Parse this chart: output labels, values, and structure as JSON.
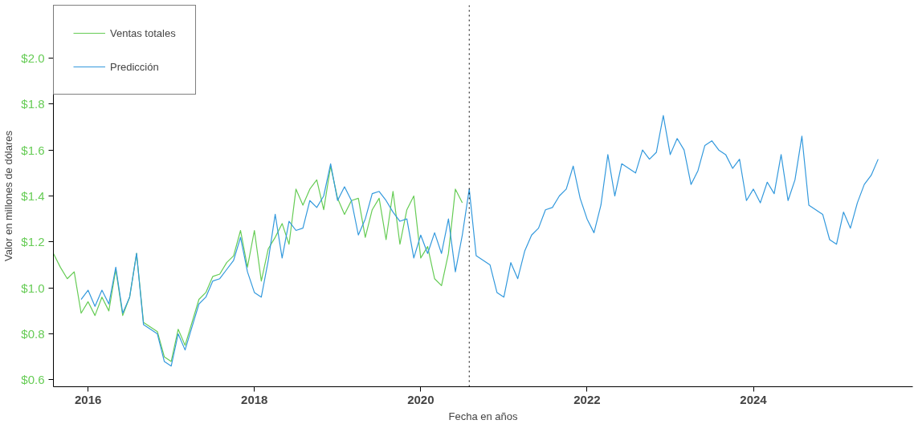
{
  "chart_data": {
    "type": "line",
    "xlabel": "Fecha en años",
    "ylabel": "Valor en millones de dólares",
    "xlim": [
      "2015-08",
      "2025-12"
    ],
    "xticks": [
      "2016",
      "2018",
      "2020",
      "2022",
      "2024"
    ],
    "ylim": [
      0.57,
      2.23
    ],
    "yticks": [
      {
        "value": 0.6,
        "label": "$0.6"
      },
      {
        "value": 0.8,
        "label": "$0.8"
      },
      {
        "value": 1.0,
        "label": "$1.0"
      },
      {
        "value": 1.2,
        "label": "$1.2"
      },
      {
        "value": 1.4,
        "label": "$1.4"
      },
      {
        "value": 1.6,
        "label": "$1.6"
      },
      {
        "value": 1.8,
        "label": "$1.8"
      },
      {
        "value": 2.0,
        "label": "$2.0"
      }
    ],
    "grid": false,
    "legend": "top left",
    "line_style": "solid",
    "marker": "none",
    "ref_lines": [
      {
        "axis": "x",
        "value": "2020-08",
        "label": null,
        "color": "#000000",
        "line_style": "dotted"
      }
    ],
    "series": [
      {
        "name": "Ventas totales",
        "color": "#66cc55",
        "x": [
          "2015-08",
          "2015-09",
          "2015-10",
          "2015-11",
          "2015-12",
          "2016-01",
          "2016-02",
          "2016-03",
          "2016-04",
          "2016-05",
          "2016-06",
          "2016-07",
          "2016-08",
          "2016-09",
          "2016-10",
          "2016-11",
          "2016-12",
          "2017-01",
          "2017-02",
          "2017-03",
          "2017-04",
          "2017-05",
          "2017-06",
          "2017-07",
          "2017-08",
          "2017-09",
          "2017-10",
          "2017-11",
          "2017-12",
          "2018-01",
          "2018-02",
          "2018-03",
          "2018-04",
          "2018-05",
          "2018-06",
          "2018-07",
          "2018-08",
          "2018-09",
          "2018-10",
          "2018-11",
          "2018-12",
          "2019-01",
          "2019-02",
          "2019-03",
          "2019-04",
          "2019-05",
          "2019-06",
          "2019-07",
          "2019-08",
          "2019-09",
          "2019-10",
          "2019-11",
          "2019-12",
          "2020-01",
          "2020-02",
          "2020-03",
          "2020-04",
          "2020-05",
          "2020-06",
          "2020-07"
        ],
        "values": [
          1.15,
          1.09,
          1.04,
          1.07,
          0.89,
          0.94,
          0.88,
          0.96,
          0.9,
          1.08,
          0.88,
          0.96,
          1.15,
          0.85,
          0.83,
          0.81,
          0.7,
          0.68,
          0.82,
          0.75,
          0.85,
          0.95,
          0.98,
          1.05,
          1.06,
          1.11,
          1.14,
          1.25,
          1.09,
          1.25,
          1.03,
          1.17,
          1.22,
          1.28,
          1.19,
          1.43,
          1.36,
          1.43,
          1.47,
          1.34,
          1.53,
          1.39,
          1.32,
          1.38,
          1.39,
          1.22,
          1.34,
          1.39,
          1.21,
          1.42,
          1.19,
          1.34,
          1.4,
          1.13,
          1.18,
          1.04,
          1.01,
          1.15,
          1.43,
          1.37
        ]
      },
      {
        "name": "Predicción",
        "color": "#3399dd",
        "x": [
          "2015-12",
          "2016-01",
          "2016-02",
          "2016-03",
          "2016-04",
          "2016-05",
          "2016-06",
          "2016-07",
          "2016-08",
          "2016-09",
          "2016-10",
          "2016-11",
          "2016-12",
          "2017-01",
          "2017-02",
          "2017-03",
          "2017-04",
          "2017-05",
          "2017-06",
          "2017-07",
          "2017-08",
          "2017-09",
          "2017-10",
          "2017-11",
          "2017-12",
          "2018-01",
          "2018-02",
          "2018-03",
          "2018-04",
          "2018-05",
          "2018-06",
          "2018-07",
          "2018-08",
          "2018-09",
          "2018-10",
          "2018-11",
          "2018-12",
          "2019-01",
          "2019-02",
          "2019-03",
          "2019-04",
          "2019-05",
          "2019-06",
          "2019-07",
          "2019-08",
          "2019-09",
          "2019-10",
          "2019-11",
          "2019-12",
          "2020-01",
          "2020-02",
          "2020-03",
          "2020-04",
          "2020-05",
          "2020-06",
          "2020-07",
          "2020-08",
          "2020-09",
          "2020-10",
          "2020-11",
          "2020-12",
          "2021-01",
          "2021-02",
          "2021-03",
          "2021-04",
          "2021-05",
          "2021-06",
          "2021-07",
          "2021-08",
          "2021-09",
          "2021-10",
          "2021-11",
          "2021-12",
          "2022-01",
          "2022-02",
          "2022-03",
          "2022-04",
          "2022-05",
          "2022-06",
          "2022-07",
          "2022-08",
          "2022-09",
          "2022-10",
          "2022-11",
          "2022-12",
          "2023-01",
          "2023-02",
          "2023-03",
          "2023-04",
          "2023-05",
          "2023-06",
          "2023-07",
          "2023-08",
          "2023-09",
          "2023-10",
          "2023-11",
          "2023-12",
          "2024-01",
          "2024-02",
          "2024-03",
          "2024-04",
          "2024-05",
          "2024-06",
          "2024-07",
          "2024-08",
          "2024-09",
          "2024-10",
          "2024-11",
          "2024-12",
          "2025-01",
          "2025-02",
          "2025-03",
          "2025-04",
          "2025-05",
          "2025-06",
          "2025-07"
        ],
        "values": [
          0.95,
          0.99,
          0.92,
          0.99,
          0.93,
          1.09,
          0.89,
          0.96,
          1.15,
          0.84,
          0.82,
          0.8,
          0.68,
          0.66,
          0.8,
          0.73,
          0.83,
          0.93,
          0.96,
          1.03,
          1.04,
          1.08,
          1.12,
          1.22,
          1.07,
          0.98,
          0.96,
          1.12,
          1.32,
          1.13,
          1.29,
          1.25,
          1.26,
          1.38,
          1.35,
          1.4,
          1.54,
          1.38,
          1.44,
          1.38,
          1.23,
          1.3,
          1.41,
          1.42,
          1.38,
          1.33,
          1.29,
          1.3,
          1.13,
          1.23,
          1.15,
          1.24,
          1.15,
          1.3,
          1.07,
          1.23,
          1.43,
          1.14,
          1.12,
          1.1,
          0.98,
          0.96,
          1.11,
          1.04,
          1.16,
          1.23,
          1.26,
          1.34,
          1.35,
          1.4,
          1.43,
          1.53,
          1.39,
          1.3,
          1.24,
          1.36,
          1.58,
          1.4,
          1.54,
          1.52,
          1.5,
          1.6,
          1.56,
          1.59,
          1.75,
          1.58,
          1.65,
          1.6,
          1.45,
          1.51,
          1.62,
          1.64,
          1.6,
          1.58,
          1.52,
          1.56,
          1.38,
          1.43,
          1.37,
          1.46,
          1.41,
          1.58,
          1.38,
          1.47,
          1.66,
          1.36,
          1.34,
          1.32,
          1.21,
          1.19,
          1.33,
          1.26,
          1.37,
          1.45,
          1.49,
          1.56
        ]
      }
    ]
  }
}
